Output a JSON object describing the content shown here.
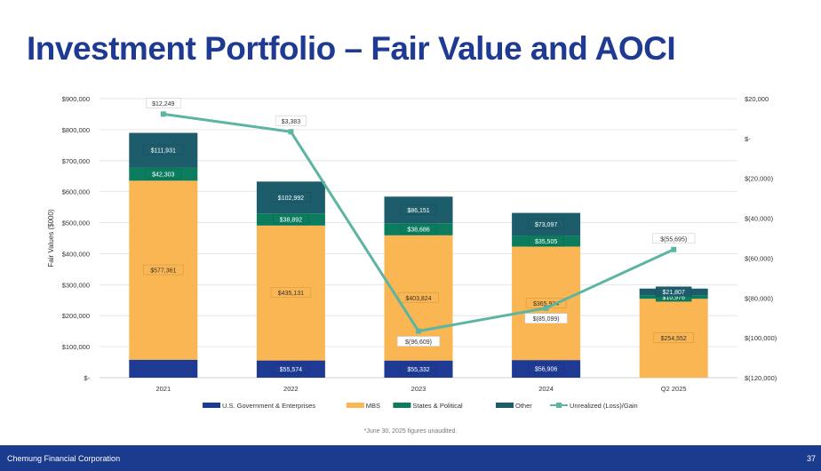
{
  "page": {
    "title": "Investment Portfolio – Fair Value and AOCI",
    "footnote": "*June 30, 2025 figures unaudited.",
    "footer_company": "Chemung Financial Corporation",
    "page_number": "37"
  },
  "chart_data": {
    "type": "bar",
    "stacked": true,
    "categories": [
      "2021",
      "2022",
      "2023",
      "2024",
      "Q2 2025"
    ],
    "ylabel": "Fair Values ($000)",
    "ylim": [
      0,
      900000
    ],
    "y_ticks": [
      "$-",
      "$100,000",
      "$200,000",
      "$300,000",
      "$400,000",
      "$500,000",
      "$600,000",
      "$700,000",
      "$800,000",
      "$900,000"
    ],
    "y2lim": [
      -120000,
      20000
    ],
    "y2_ticks": [
      "$(120,000)",
      "$(100,000)",
      "$(80,000)",
      "$(60,000)",
      "$(40,000)",
      "$(20,000)",
      "$-",
      "$20,000"
    ],
    "grid": true,
    "legend_position": "bottom",
    "series": [
      {
        "name": "U.S. Government & Enterprises",
        "color": "#1f3a93",
        "values": [
          58000,
          55574,
          55332,
          56906,
          0
        ],
        "labels": [
          "",
          "$55,574",
          "$55,332",
          "$56,906",
          ""
        ]
      },
      {
        "name": "MBS",
        "color": "#f9b652",
        "values": [
          577361,
          435131,
          403824,
          365934,
          254552
        ],
        "labels": [
          "$577,361",
          "$435,131",
          "$403,824",
          "$365,934",
          "$254,552"
        ]
      },
      {
        "name": "States & Political",
        "color": "#0b7d5e",
        "values": [
          42303,
          38892,
          38686,
          35505,
          10976
        ],
        "labels": [
          "$42,303",
          "$38,892",
          "$38,686",
          "$35,505",
          "$10,976"
        ]
      },
      {
        "name": "Other",
        "color": "#1d5c6b",
        "values": [
          111931,
          102992,
          86151,
          73097,
          21807
        ],
        "labels": [
          "$111,931",
          "$102,992",
          "$86,151",
          "$73,097",
          "$21,807"
        ]
      }
    ],
    "line_series": {
      "name": "Unrealized (Loss)/Gain",
      "color": "#5bb5a2",
      "axis": "right",
      "values": [
        12249,
        3383,
        -96609,
        -85099,
        -55695
      ],
      "labels": [
        "$12,249",
        "$3,383",
        "$(96,609)",
        "$(85,099)",
        "$(55,695)"
      ]
    }
  }
}
